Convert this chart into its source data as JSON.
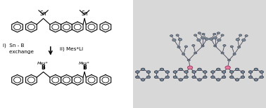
{
  "bg_color": "#ffffff",
  "line_color": "#000000",
  "bond_lw": 0.8,
  "font_size_labels": 5.5,
  "font_size_text": 5.2,
  "text_step1": "i)  Sn - B\n    exchange",
  "text_step2": "ii) Mes*Li",
  "pink_color": "#e87ca0",
  "gray_color": "#7a8f9e",
  "crystal_bg": "#c8c8c8"
}
